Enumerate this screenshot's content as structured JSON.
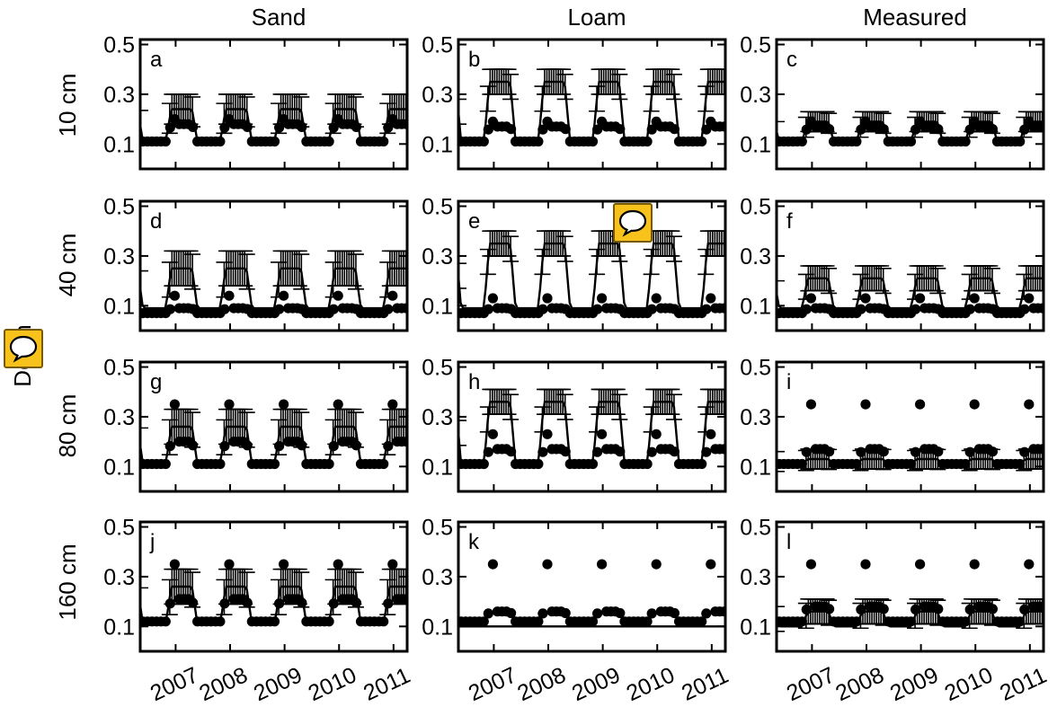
{
  "columns": [
    "Sand",
    "Loam",
    "Measured"
  ],
  "rows": [
    "10 cm",
    "40 cm",
    "80 cm",
    "160 cm"
  ],
  "depth_label": "Depth",
  "panel_letters": [
    "a",
    "b",
    "c",
    "d",
    "e",
    "f",
    "g",
    "h",
    "i",
    "j",
    "k",
    "l"
  ],
  "yticks": [
    "0.1",
    "0.3",
    "0.5"
  ],
  "xticks": [
    "2007",
    "2008",
    "2009",
    "2010",
    "2011"
  ],
  "icons": [
    "comment-icon",
    "comment-icon"
  ],
  "chart_data": {
    "type": "line",
    "ylim": [
      0.0,
      0.52
    ],
    "xlim": [
      2006.35,
      2011.25
    ],
    "grid": false,
    "panels": [
      {
        "letter": "a",
        "column": "Sand",
        "row": "10 cm",
        "line": {
          "base": 0.11,
          "wet": 0.24
        },
        "errorbar": 0.06,
        "points": {
          "base": 0.11,
          "wet": 0.18,
          "peak": 0.2
        }
      },
      {
        "letter": "b",
        "column": "Loam",
        "row": "10 cm",
        "line": {
          "base": 0.11,
          "wet": 0.35
        },
        "errorbar": 0.05,
        "points": {
          "base": 0.11,
          "wet": 0.17,
          "peak": 0.19
        }
      },
      {
        "letter": "c",
        "column": "Measured",
        "row": "10 cm",
        "line": {
          "base": 0.11,
          "wet": 0.19
        },
        "errorbar": 0.04,
        "points": {
          "base": 0.11,
          "wet": 0.17,
          "peak": 0.19
        }
      },
      {
        "letter": "d",
        "column": "Sand",
        "row": "40 cm",
        "line": {
          "base": 0.09,
          "wet": 0.25
        },
        "errorbar": 0.07,
        "points": {
          "base": 0.07,
          "wet": 0.09,
          "peak": 0.14
        }
      },
      {
        "letter": "e",
        "column": "Loam",
        "row": "40 cm",
        "line": {
          "base": 0.09,
          "wet": 0.35
        },
        "errorbar": 0.05,
        "points": {
          "base": 0.07,
          "wet": 0.09,
          "peak": 0.13
        }
      },
      {
        "letter": "f",
        "column": "Measured",
        "row": "40 cm",
        "line": {
          "base": 0.09,
          "wet": 0.21
        },
        "errorbar": 0.05,
        "points": {
          "base": 0.07,
          "wet": 0.09,
          "peak": 0.13
        }
      },
      {
        "letter": "g",
        "column": "Sand",
        "row": "80 cm",
        "line": {
          "base": 0.11,
          "wet": 0.26
        },
        "errorbar": 0.07,
        "points": {
          "base": 0.11,
          "wet": 0.2,
          "peak": 0.35
        }
      },
      {
        "letter": "h",
        "column": "Loam",
        "row": "80 cm",
        "line": {
          "base": 0.11,
          "wet": 0.36
        },
        "errorbar": 0.05,
        "points": {
          "base": 0.11,
          "wet": 0.17,
          "peak": 0.23
        }
      },
      {
        "letter": "i",
        "column": "Measured",
        "row": "80 cm",
        "line": {
          "base": 0.11,
          "wet": 0.13
        },
        "errorbar": 0.04,
        "points": {
          "base": 0.11,
          "wet": 0.17,
          "peak": 0.35
        }
      },
      {
        "letter": "j",
        "column": "Sand",
        "row": "160 cm",
        "line": {
          "base": 0.11,
          "wet": 0.26
        },
        "errorbar": 0.07,
        "points": {
          "base": 0.12,
          "wet": 0.21,
          "peak": 0.35
        }
      },
      {
        "letter": "k",
        "column": "Loam",
        "row": "160 cm",
        "line": {
          "base": 0.1,
          "wet": 0.1
        },
        "errorbar": 0.0,
        "points": {
          "base": 0.12,
          "wet": 0.16,
          "peak": 0.35
        }
      },
      {
        "letter": "l",
        "column": "Measured",
        "row": "160 cm",
        "line": {
          "base": 0.1,
          "wet": 0.16
        },
        "errorbar": 0.05,
        "points": {
          "base": 0.12,
          "wet": 0.18,
          "peak": 0.35
        }
      }
    ]
  }
}
